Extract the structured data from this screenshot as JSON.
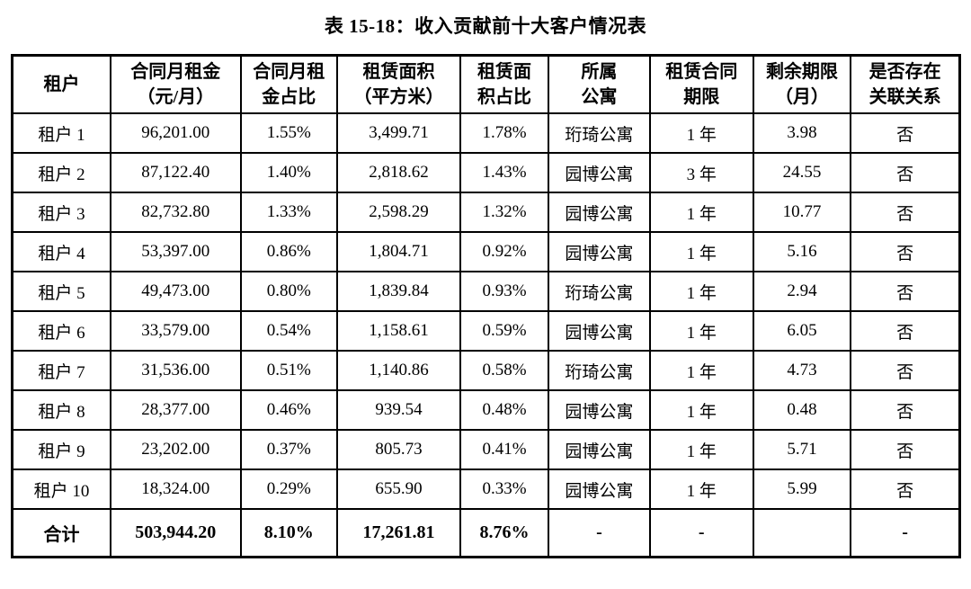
{
  "title": "表 15-18：收入贡献前十大客户情况表",
  "table": {
    "columns": [
      "租户",
      "合同月租金\n（元/月）",
      "合同月租\n金占比",
      "租赁面积\n（平方米）",
      "租赁面\n积占比",
      "所属\n公寓",
      "租赁合同\n期限",
      "剩余期限\n（月）",
      "是否存在\n关联关系"
    ],
    "rows": [
      [
        "租户 1",
        "96,201.00",
        "1.55%",
        "3,499.71",
        "1.78%",
        "珩琦公寓",
        "1 年",
        "3.98",
        "否"
      ],
      [
        "租户 2",
        "87,122.40",
        "1.40%",
        "2,818.62",
        "1.43%",
        "园博公寓",
        "3 年",
        "24.55",
        "否"
      ],
      [
        "租户 3",
        "82,732.80",
        "1.33%",
        "2,598.29",
        "1.32%",
        "园博公寓",
        "1 年",
        "10.77",
        "否"
      ],
      [
        "租户 4",
        "53,397.00",
        "0.86%",
        "1,804.71",
        "0.92%",
        "园博公寓",
        "1 年",
        "5.16",
        "否"
      ],
      [
        "租户 5",
        "49,473.00",
        "0.80%",
        "1,839.84",
        "0.93%",
        "珩琦公寓",
        "1 年",
        "2.94",
        "否"
      ],
      [
        "租户 6",
        "33,579.00",
        "0.54%",
        "1,158.61",
        "0.59%",
        "园博公寓",
        "1 年",
        "6.05",
        "否"
      ],
      [
        "租户 7",
        "31,536.00",
        "0.51%",
        "1,140.86",
        "0.58%",
        "珩琦公寓",
        "1 年",
        "4.73",
        "否"
      ],
      [
        "租户 8",
        "28,377.00",
        "0.46%",
        "939.54",
        "0.48%",
        "园博公寓",
        "1 年",
        "0.48",
        "否"
      ],
      [
        "租户 9",
        "23,202.00",
        "0.37%",
        "805.73",
        "0.41%",
        "园博公寓",
        "1 年",
        "5.71",
        "否"
      ],
      [
        "租户 10",
        "18,324.00",
        "0.29%",
        "655.90",
        "0.33%",
        "园博公寓",
        "1 年",
        "5.99",
        "否"
      ]
    ],
    "total": [
      "合计",
      "503,944.20",
      "8.10%",
      "17,261.81",
      "8.76%",
      "-",
      "-",
      "",
      "-"
    ]
  }
}
